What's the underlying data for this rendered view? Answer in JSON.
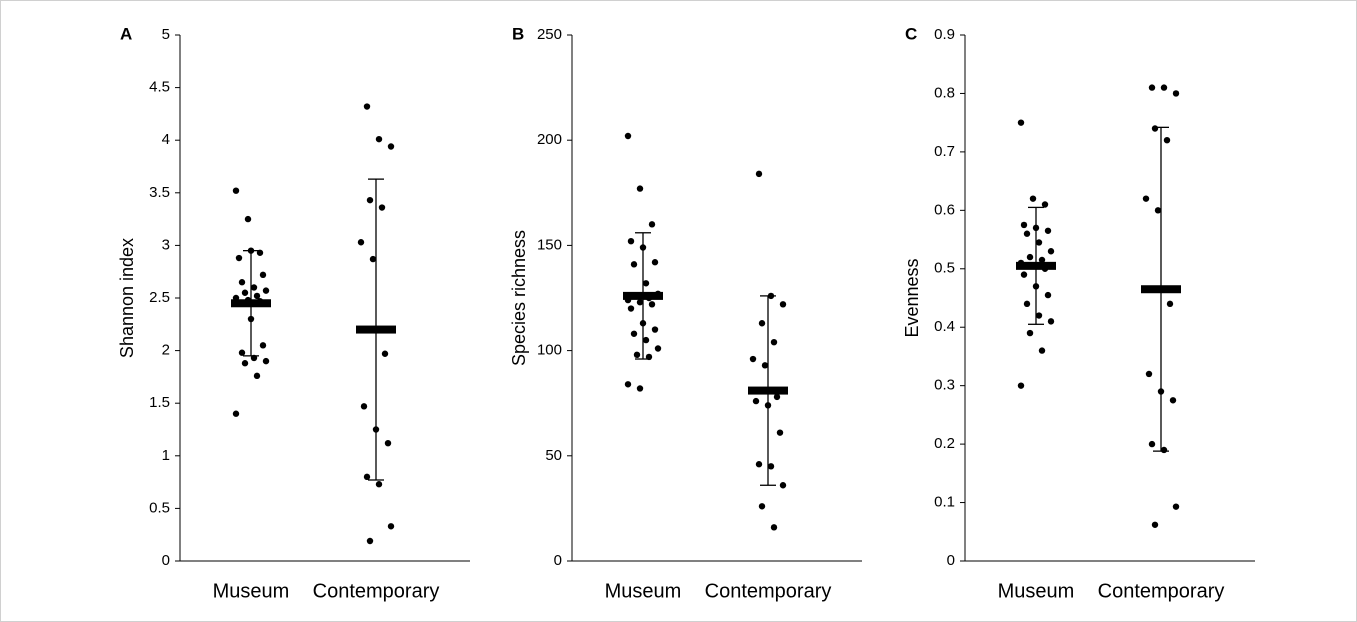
{
  "chart_data": [
    {
      "type": "strip",
      "panel_label": "A",
      "y_label": "Shannon index",
      "categories": [
        "Museum",
        "Contemporary"
      ],
      "values": [
        [
          3.52,
          3.25,
          2.93,
          2.88,
          2.95,
          2.72,
          2.65,
          2.6,
          2.57,
          2.55,
          2.52,
          2.5,
          2.48,
          2.47,
          2.45,
          2.3,
          2.05,
          1.98,
          1.93,
          1.9,
          1.88,
          1.76,
          1.4
        ],
        [
          4.32,
          4.01,
          3.94,
          3.43,
          3.36,
          3.03,
          2.87,
          1.97,
          1.47,
          1.25,
          1.12,
          0.8,
          0.73,
          0.33,
          0.19
        ]
      ],
      "mean": [
        2.45,
        2.2
      ],
      "error": [
        0.5,
        1.43
      ],
      "color": "#000000",
      "ylim": [
        0,
        5
      ],
      "yticks": [
        0,
        0.5,
        1,
        1.5,
        2,
        2.5,
        3,
        3.5,
        4,
        4.5,
        5
      ]
    },
    {
      "type": "strip",
      "panel_label": "B",
      "y_label": "Species richness",
      "categories": [
        "Museum",
        "Contemporary"
      ],
      "values": [
        [
          202,
          177,
          160,
          152,
          149,
          142,
          141,
          132,
          127,
          126,
          125,
          124,
          123,
          122,
          120,
          113,
          110,
          108,
          105,
          101,
          98,
          97,
          84,
          82
        ],
        [
          184,
          126,
          122,
          113,
          104,
          96,
          93,
          78,
          76,
          74,
          61,
          46,
          45,
          36,
          26,
          16
        ]
      ],
      "mean": [
        126,
        81
      ],
      "error": [
        30,
        45
      ],
      "color": "#000000",
      "ylim": [
        0,
        250
      ],
      "yticks": [
        0,
        50,
        100,
        150,
        200,
        250
      ]
    },
    {
      "type": "strip",
      "panel_label": "C",
      "y_label": "Evenness",
      "categories": [
        "Museum",
        "Contemporary"
      ],
      "values": [
        [
          0.75,
          0.62,
          0.61,
          0.575,
          0.57,
          0.565,
          0.56,
          0.545,
          0.53,
          0.52,
          0.515,
          0.51,
          0.505,
          0.5,
          0.49,
          0.47,
          0.455,
          0.44,
          0.42,
          0.41,
          0.39,
          0.36,
          0.3
        ],
        [
          0.81,
          0.81,
          0.8,
          0.74,
          0.72,
          0.62,
          0.6,
          0.44,
          0.32,
          0.29,
          0.275,
          0.2,
          0.19,
          0.093,
          0.062
        ]
      ],
      "mean": [
        0.505,
        0.465
      ],
      "error": [
        0.1,
        0.277
      ],
      "color": "#000000",
      "ylim": [
        0,
        0.9
      ],
      "yticks": [
        0,
        0.1,
        0.2,
        0.3,
        0.4,
        0.5,
        0.6,
        0.7,
        0.8,
        0.9
      ]
    }
  ]
}
